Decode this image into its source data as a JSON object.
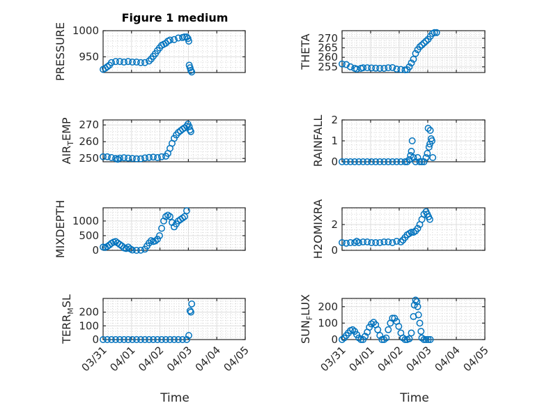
{
  "figure": {
    "title": "Figure 1 medium",
    "xlabel": "Time",
    "marker_color": "#0072bd"
  },
  "chart_data": [
    {
      "type": "scatter",
      "ylabel": "PRESSURE",
      "xlim": [
        0,
        3.4
      ],
      "ylim": [
        920,
        1000
      ],
      "yticks": [
        950,
        1000
      ],
      "ytick_labels": [
        "950",
        "1000"
      ],
      "xtick_labels": [],
      "points": [
        [
          0,
          926
        ],
        [
          0.05,
          928
        ],
        [
          0.1,
          931
        ],
        [
          0.15,
          934
        ],
        [
          0.2,
          939
        ],
        [
          0.3,
          941
        ],
        [
          0.4,
          941
        ],
        [
          0.5,
          940
        ],
        [
          0.6,
          941
        ],
        [
          0.7,
          940
        ],
        [
          0.8,
          940
        ],
        [
          0.9,
          939
        ],
        [
          1.0,
          939
        ],
        [
          1.1,
          942
        ],
        [
          1.15,
          946
        ],
        [
          1.2,
          951
        ],
        [
          1.25,
          956
        ],
        [
          1.3,
          962
        ],
        [
          1.35,
          967
        ],
        [
          1.4,
          972
        ],
        [
          1.45,
          974
        ],
        [
          1.5,
          976
        ],
        [
          1.55,
          980
        ],
        [
          1.6,
          982
        ],
        [
          1.7,
          983
        ],
        [
          1.8,
          986
        ],
        [
          1.9,
          987
        ],
        [
          1.95,
          988
        ],
        [
          2.0,
          988
        ],
        [
          2.03,
          985
        ],
        [
          2.05,
          980
        ],
        [
          2.06,
          934
        ],
        [
          2.08,
          929
        ],
        [
          2.1,
          924
        ],
        [
          2.12,
          921
        ]
      ]
    },
    {
      "type": "scatter",
      "ylabel": "THETA",
      "xlim": [
        0,
        3.4
      ],
      "ylim": [
        252,
        274
      ],
      "yticks": [
        255,
        260,
        265,
        270
      ],
      "ytick_labels": [
        "255",
        "260",
        "265",
        "270"
      ],
      "xtick_labels": [],
      "points": [
        [
          0,
          256.5
        ],
        [
          0.1,
          256.2
        ],
        [
          0.2,
          255
        ],
        [
          0.3,
          254.2
        ],
        [
          0.35,
          253.8
        ],
        [
          0.45,
          254.2
        ],
        [
          0.5,
          254.5
        ],
        [
          0.6,
          254.5
        ],
        [
          0.7,
          254.4
        ],
        [
          0.8,
          254.3
        ],
        [
          0.9,
          254.2
        ],
        [
          1.0,
          254.2
        ],
        [
          1.1,
          254.5
        ],
        [
          1.2,
          254.6
        ],
        [
          1.3,
          253.8
        ],
        [
          1.4,
          253.6
        ],
        [
          1.5,
          253.4
        ],
        [
          1.55,
          253.5
        ],
        [
          1.6,
          255
        ],
        [
          1.65,
          257
        ],
        [
          1.7,
          259
        ],
        [
          1.75,
          262
        ],
        [
          1.8,
          264
        ],
        [
          1.85,
          265.5
        ],
        [
          1.9,
          266.5
        ],
        [
          1.95,
          267.5
        ],
        [
          2.0,
          268.5
        ],
        [
          2.05,
          269.5
        ],
        [
          2.1,
          271
        ],
        [
          2.15,
          272.5
        ],
        [
          2.2,
          273
        ],
        [
          2.25,
          273
        ]
      ]
    },
    {
      "type": "scatter",
      "ylabel": "AIR_TEMP",
      "xlim": [
        0,
        3.4
      ],
      "ylim": [
        248,
        273
      ],
      "yticks": [
        250,
        260,
        270
      ],
      "ytick_labels": [
        "250",
        "260",
        "270"
      ],
      "xtick_labels": [],
      "points": [
        [
          0,
          251
        ],
        [
          0.1,
          251
        ],
        [
          0.2,
          250.5
        ],
        [
          0.3,
          250
        ],
        [
          0.35,
          249.5
        ],
        [
          0.4,
          250.2
        ],
        [
          0.5,
          250.4
        ],
        [
          0.6,
          250.2
        ],
        [
          0.7,
          250
        ],
        [
          0.8,
          249.8
        ],
        [
          0.9,
          249.8
        ],
        [
          1.0,
          250.3
        ],
        [
          1.1,
          250.6
        ],
        [
          1.2,
          250.8
        ],
        [
          1.3,
          250.5
        ],
        [
          1.4,
          251
        ],
        [
          1.5,
          251.3
        ],
        [
          1.55,
          253
        ],
        [
          1.6,
          256
        ],
        [
          1.65,
          259
        ],
        [
          1.7,
          262
        ],
        [
          1.75,
          264
        ],
        [
          1.8,
          265.5
        ],
        [
          1.85,
          266.5
        ],
        [
          1.9,
          267.5
        ],
        [
          1.95,
          268.3
        ],
        [
          2.0,
          269.3
        ],
        [
          2.03,
          270.5
        ],
        [
          2.06,
          269
        ],
        [
          2.08,
          267
        ],
        [
          2.1,
          266
        ]
      ]
    },
    {
      "type": "scatter",
      "ylabel": "RAINFALL",
      "xlim": [
        0,
        3.4
      ],
      "ylim": [
        0,
        2
      ],
      "yticks": [
        0,
        1,
        2
      ],
      "ytick_labels": [
        "0",
        "1",
        "2"
      ],
      "xtick_labels": [],
      "points": [
        [
          0,
          0
        ],
        [
          0.1,
          0
        ],
        [
          0.2,
          0
        ],
        [
          0.3,
          0
        ],
        [
          0.4,
          0
        ],
        [
          0.5,
          0
        ],
        [
          0.6,
          0
        ],
        [
          0.7,
          0
        ],
        [
          0.8,
          0
        ],
        [
          0.9,
          0
        ],
        [
          1.0,
          0
        ],
        [
          1.1,
          0
        ],
        [
          1.2,
          0
        ],
        [
          1.3,
          0
        ],
        [
          1.4,
          0
        ],
        [
          1.5,
          0
        ],
        [
          1.55,
          0
        ],
        [
          1.6,
          0.1
        ],
        [
          1.63,
          0.3
        ],
        [
          1.65,
          0.5
        ],
        [
          1.67,
          1.0
        ],
        [
          1.7,
          0.2
        ],
        [
          1.75,
          0
        ],
        [
          1.8,
          0.2
        ],
        [
          1.85,
          0
        ],
        [
          1.9,
          0
        ],
        [
          1.95,
          0
        ],
        [
          2.0,
          0.2
        ],
        [
          2.03,
          0.4
        ],
        [
          2.05,
          1.6
        ],
        [
          2.07,
          0.7
        ],
        [
          2.09,
          0.85
        ],
        [
          2.1,
          1.5
        ],
        [
          2.12,
          1.1
        ],
        [
          2.14,
          1.0
        ],
        [
          2.16,
          0.2
        ]
      ]
    },
    {
      "type": "scatter",
      "ylabel": "MIXDEPTH",
      "xlim": [
        0,
        3.4
      ],
      "ylim": [
        0,
        1450
      ],
      "yticks": [
        0,
        500,
        1000
      ],
      "ytick_labels": [
        "0",
        "500",
        "1000"
      ],
      "xtick_labels": [],
      "points": [
        [
          0,
          110
        ],
        [
          0.05,
          100
        ],
        [
          0.1,
          130
        ],
        [
          0.15,
          180
        ],
        [
          0.2,
          240
        ],
        [
          0.25,
          280
        ],
        [
          0.3,
          300
        ],
        [
          0.35,
          250
        ],
        [
          0.4,
          200
        ],
        [
          0.45,
          150
        ],
        [
          0.5,
          80
        ],
        [
          0.55,
          60
        ],
        [
          0.6,
          110
        ],
        [
          0.65,
          50
        ],
        [
          0.7,
          10
        ],
        [
          0.8,
          0
        ],
        [
          0.9,
          5
        ],
        [
          1.0,
          40
        ],
        [
          1.05,
          150
        ],
        [
          1.1,
          250
        ],
        [
          1.15,
          330
        ],
        [
          1.2,
          300
        ],
        [
          1.25,
          320
        ],
        [
          1.3,
          380
        ],
        [
          1.35,
          500
        ],
        [
          1.4,
          750
        ],
        [
          1.45,
          1000
        ],
        [
          1.5,
          1150
        ],
        [
          1.55,
          1200
        ],
        [
          1.6,
          1150
        ],
        [
          1.65,
          950
        ],
        [
          1.7,
          800
        ],
        [
          1.75,
          900
        ],
        [
          1.8,
          1000
        ],
        [
          1.85,
          1050
        ],
        [
          1.9,
          1100
        ],
        [
          1.95,
          1150
        ],
        [
          2.0,
          1350
        ]
      ]
    },
    {
      "type": "scatter",
      "ylabel": "H2OMIXRA",
      "xlim": [
        0,
        3.4
      ],
      "ylim": [
        0,
        3.3
      ],
      "yticks": [
        0,
        2
      ],
      "ytick_labels": [
        "0",
        "2"
      ],
      "xtick_labels": [],
      "points": [
        [
          0,
          0.6
        ],
        [
          0.1,
          0.55
        ],
        [
          0.2,
          0.6
        ],
        [
          0.3,
          0.6
        ],
        [
          0.35,
          0.7
        ],
        [
          0.4,
          0.6
        ],
        [
          0.5,
          0.65
        ],
        [
          0.6,
          0.65
        ],
        [
          0.7,
          0.6
        ],
        [
          0.8,
          0.6
        ],
        [
          0.9,
          0.6
        ],
        [
          1.0,
          0.65
        ],
        [
          1.1,
          0.65
        ],
        [
          1.2,
          0.6
        ],
        [
          1.3,
          0.7
        ],
        [
          1.4,
          0.65
        ],
        [
          1.45,
          0.8
        ],
        [
          1.5,
          1.0
        ],
        [
          1.55,
          1.2
        ],
        [
          1.6,
          1.3
        ],
        [
          1.65,
          1.4
        ],
        [
          1.7,
          1.4
        ],
        [
          1.75,
          1.5
        ],
        [
          1.8,
          1.7
        ],
        [
          1.85,
          2.0
        ],
        [
          1.9,
          2.4
        ],
        [
          1.95,
          2.8
        ],
        [
          2.0,
          3.0
        ],
        [
          2.03,
          2.8
        ],
        [
          2.06,
          2.6
        ],
        [
          2.09,
          2.4
        ]
      ]
    },
    {
      "type": "scatter",
      "ylabel": "TERR_MSL",
      "xlim": [
        0,
        3.4
      ],
      "ylim": [
        0,
        300
      ],
      "yticks": [
        0,
        100,
        200
      ],
      "ytick_labels": [
        "0",
        "100",
        "200"
      ],
      "xtick_labels": [
        "03/31",
        "04/01",
        "04/02",
        "04/03",
        "04/04",
        "04/05"
      ],
      "points": [
        [
          0,
          0
        ],
        [
          0.1,
          0
        ],
        [
          0.2,
          0
        ],
        [
          0.3,
          0
        ],
        [
          0.4,
          0
        ],
        [
          0.5,
          0
        ],
        [
          0.6,
          0
        ],
        [
          0.7,
          0
        ],
        [
          0.8,
          0
        ],
        [
          0.9,
          0
        ],
        [
          1.0,
          0
        ],
        [
          1.1,
          0
        ],
        [
          1.2,
          0
        ],
        [
          1.3,
          0
        ],
        [
          1.4,
          0
        ],
        [
          1.5,
          0
        ],
        [
          1.6,
          0
        ],
        [
          1.7,
          0
        ],
        [
          1.8,
          0
        ],
        [
          1.9,
          0
        ],
        [
          2.0,
          0
        ],
        [
          2.05,
          30
        ],
        [
          2.08,
          210
        ],
        [
          2.1,
          200
        ],
        [
          2.12,
          260
        ]
      ]
    },
    {
      "type": "scatter",
      "ylabel": "SUN_FLUX",
      "xlim": [
        0,
        3.4
      ],
      "ylim": [
        0,
        250
      ],
      "yticks": [
        0,
        100,
        200
      ],
      "ytick_labels": [
        "0",
        "100",
        "200"
      ],
      "xtick_labels": [
        "03/31",
        "04/01",
        "04/02",
        "04/03",
        "04/04",
        "04/05"
      ],
      "points": [
        [
          0,
          0
        ],
        [
          0.05,
          10
        ],
        [
          0.1,
          25
        ],
        [
          0.15,
          40
        ],
        [
          0.2,
          55
        ],
        [
          0.25,
          60
        ],
        [
          0.3,
          50
        ],
        [
          0.35,
          30
        ],
        [
          0.4,
          10
        ],
        [
          0.45,
          0
        ],
        [
          0.5,
          0
        ],
        [
          0.55,
          20
        ],
        [
          0.6,
          45
        ],
        [
          0.65,
          75
        ],
        [
          0.7,
          95
        ],
        [
          0.75,
          105
        ],
        [
          0.8,
          90
        ],
        [
          0.85,
          60
        ],
        [
          0.9,
          25
        ],
        [
          0.95,
          0
        ],
        [
          1.0,
          0
        ],
        [
          1.05,
          10
        ],
        [
          1.1,
          60
        ],
        [
          1.15,
          100
        ],
        [
          1.2,
          130
        ],
        [
          1.25,
          130
        ],
        [
          1.3,
          110
        ],
        [
          1.35,
          80
        ],
        [
          1.4,
          40
        ],
        [
          1.45,
          10
        ],
        [
          1.5,
          0
        ],
        [
          1.55,
          0
        ],
        [
          1.6,
          5
        ],
        [
          1.65,
          40
        ],
        [
          1.7,
          140
        ],
        [
          1.72,
          210
        ],
        [
          1.75,
          240
        ],
        [
          1.78,
          230
        ],
        [
          1.8,
          200
        ],
        [
          1.82,
          150
        ],
        [
          1.85,
          100
        ],
        [
          1.88,
          50
        ],
        [
          1.9,
          10
        ],
        [
          1.95,
          0
        ],
        [
          2.0,
          0
        ],
        [
          2.05,
          0
        ],
        [
          2.1,
          0
        ]
      ]
    }
  ]
}
